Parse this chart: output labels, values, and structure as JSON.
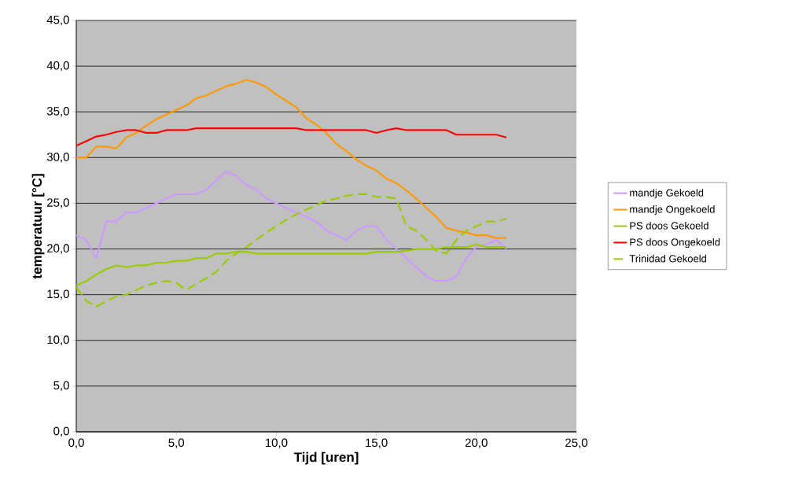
{
  "chart_data": {
    "type": "line",
    "xlabel": "Tijd [uren]",
    "ylabel": "temperatuur [°C]",
    "x": [
      0,
      0.5,
      1,
      1.5,
      2,
      2.5,
      3,
      3.5,
      4,
      4.5,
      5,
      5.5,
      6,
      6.5,
      7,
      7.5,
      8,
      8.5,
      9,
      9.5,
      10,
      10.5,
      11,
      11.5,
      12,
      12.5,
      13,
      13.5,
      14,
      14.5,
      15,
      15.5,
      16,
      16.5,
      17,
      17.5,
      18,
      18.5,
      19,
      19.5,
      20,
      20.5,
      21,
      21.5
    ],
    "series": [
      {
        "name": "mandje Gekoeld",
        "color": "#cc99ff",
        "line_style": "solid",
        "values": [
          21.5,
          21,
          19,
          23,
          23,
          24,
          24,
          24.5,
          25,
          25.5,
          26,
          26,
          26,
          26.5,
          27.5,
          28.5,
          28,
          27,
          26.5,
          25.5,
          25,
          24.5,
          24,
          23.5,
          23,
          22,
          21.5,
          21,
          22,
          22.5,
          22.5,
          21,
          20,
          19,
          18,
          17,
          16.5,
          16.5,
          17,
          19,
          20.2,
          20.5,
          21,
          20
        ]
      },
      {
        "name": "mandje Ongekoeld",
        "color": "#ff9900",
        "line_style": "solid",
        "values": [
          30,
          30,
          31.2,
          31.2,
          31,
          32.2,
          32.7,
          33.5,
          34.2,
          34.7,
          35.2,
          35.7,
          36.5,
          36.8,
          37.3,
          37.8,
          38.1,
          38.5,
          38.2,
          37.7,
          36.9,
          36.2,
          35.5,
          34.3,
          33.6,
          32.7,
          31.5,
          30.7,
          29.8,
          29.1,
          28.6,
          27.7,
          27.2,
          26.4,
          25.5,
          24.5,
          23.5,
          22.3,
          22,
          21.8,
          21.5,
          21.5,
          21.2,
          21.2
        ]
      },
      {
        "name": "PS doos Gekoeld",
        "color": "#99cc00",
        "line_style": "solid",
        "values": [
          16,
          16.5,
          17.2,
          17.8,
          18.2,
          18,
          18.2,
          18.2,
          18.5,
          18.5,
          18.7,
          18.7,
          19,
          19,
          19.5,
          19.5,
          19.7,
          19.7,
          19.5,
          19.5,
          19.5,
          19.5,
          19.5,
          19.5,
          19.5,
          19.5,
          19.5,
          19.5,
          19.5,
          19.5,
          19.7,
          19.7,
          19.7,
          19.8,
          20,
          20,
          20,
          20.2,
          20.2,
          20.2,
          20.5,
          20.2,
          20.2,
          20.2
        ]
      },
      {
        "name": "PS doos Ongekoeld",
        "color": "#ff0000",
        "line_style": "solid",
        "values": [
          31.3,
          31.8,
          32.3,
          32.5,
          32.8,
          33,
          33,
          32.7,
          32.7,
          33,
          33,
          33,
          33.2,
          33.2,
          33.2,
          33.2,
          33.2,
          33.2,
          33.2,
          33.2,
          33.2,
          33.2,
          33.2,
          33,
          33,
          33,
          33,
          33,
          33,
          33,
          32.7,
          33,
          33.2,
          33,
          33,
          33,
          33,
          33,
          32.5,
          32.5,
          32.5,
          32.5,
          32.5,
          32.2
        ]
      },
      {
        "name": "Trinidad Gekoeld",
        "color": "#99cc00",
        "line_style": "dashed",
        "values": [
          15.8,
          14.3,
          13.7,
          14.3,
          14.8,
          15,
          15.5,
          16,
          16.3,
          16.5,
          16.3,
          15.5,
          16.2,
          16.8,
          17.5,
          18.7,
          19.5,
          20.2,
          21,
          21.8,
          22.5,
          23.2,
          23.8,
          24.3,
          24.8,
          25.3,
          25.5,
          25.8,
          26,
          26,
          25.7,
          25.7,
          25.5,
          22.5,
          22,
          21,
          19.8,
          19.5,
          21,
          22,
          22.5,
          23,
          23,
          23.3
        ]
      }
    ],
    "xlim": [
      0,
      25
    ],
    "ylim": [
      0,
      45
    ],
    "xticks": [
      {
        "value": 0,
        "label": "0,0"
      },
      {
        "value": 5,
        "label": "5,0"
      },
      {
        "value": 10,
        "label": "10,0"
      },
      {
        "value": 15,
        "label": "15,0"
      },
      {
        "value": 20,
        "label": "20,0"
      },
      {
        "value": 25,
        "label": "25,0"
      }
    ],
    "yticks": [
      {
        "value": 0,
        "label": "0,0"
      },
      {
        "value": 5,
        "label": "5,0"
      },
      {
        "value": 10,
        "label": "10,0"
      },
      {
        "value": 15,
        "label": "15,0"
      },
      {
        "value": 20,
        "label": "20,0"
      },
      {
        "value": 25,
        "label": "25,0"
      },
      {
        "value": 30,
        "label": "30,0"
      },
      {
        "value": 35,
        "label": "35,0"
      },
      {
        "value": 40,
        "label": "40,0"
      },
      {
        "value": 45,
        "label": "45,0"
      }
    ],
    "grid": "y",
    "legend": "right",
    "marker": "none"
  }
}
